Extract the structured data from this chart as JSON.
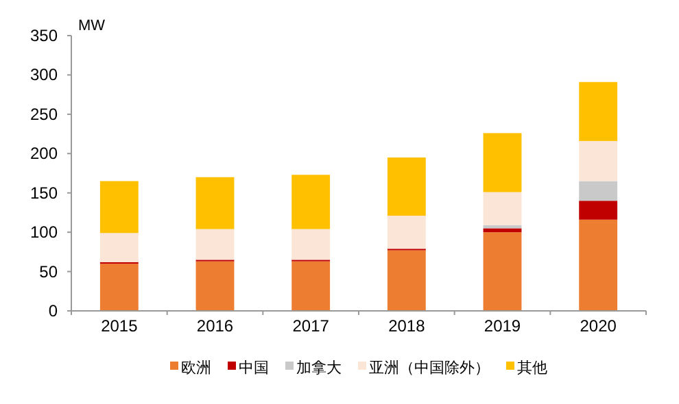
{
  "chart_data": {
    "type": "bar",
    "stacked": true,
    "ylabel": "MW",
    "categories": [
      "2015",
      "2016",
      "2017",
      "2018",
      "2019",
      "2020"
    ],
    "series": [
      {
        "name": "欧洲",
        "color": "#ed7d31",
        "values": [
          60,
          63,
          63,
          77,
          100,
          116
        ]
      },
      {
        "name": "中国",
        "color": "#c00000",
        "values": [
          2,
          2,
          2,
          2,
          5,
          24
        ]
      },
      {
        "name": "加拿大",
        "color": "#c9c9c9",
        "values": [
          0,
          0,
          0,
          0,
          4,
          25
        ]
      },
      {
        "name": "亚洲（中国除外）",
        "color": "#fbe5d6",
        "values": [
          37,
          39,
          39,
          42,
          42,
          51
        ]
      },
      {
        "name": "其他",
        "color": "#ffc000",
        "values": [
          66,
          66,
          69,
          74,
          75,
          75
        ]
      }
    ],
    "ylim": [
      0,
      350
    ],
    "yticks": [
      0,
      50,
      100,
      150,
      200,
      250,
      300,
      350
    ],
    "grid": false,
    "legend": "bottom"
  }
}
